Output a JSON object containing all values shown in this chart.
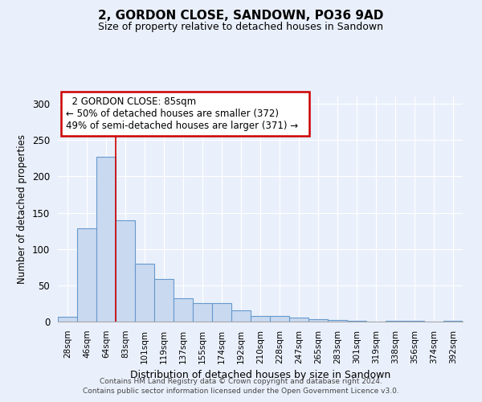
{
  "title": "2, GORDON CLOSE, SANDOWN, PO36 9AD",
  "subtitle": "Size of property relative to detached houses in Sandown",
  "xlabel": "Distribution of detached houses by size in Sandown",
  "ylabel": "Number of detached properties",
  "bar_labels": [
    "28sqm",
    "46sqm",
    "64sqm",
    "83sqm",
    "101sqm",
    "119sqm",
    "137sqm",
    "155sqm",
    "174sqm",
    "192sqm",
    "210sqm",
    "228sqm",
    "247sqm",
    "265sqm",
    "283sqm",
    "301sqm",
    "319sqm",
    "338sqm",
    "356sqm",
    "374sqm",
    "392sqm"
  ],
  "bar_values": [
    7,
    128,
    227,
    139,
    80,
    59,
    32,
    26,
    26,
    15,
    8,
    8,
    5,
    3,
    2,
    1,
    0,
    1,
    1,
    0,
    1
  ],
  "bar_color": "#c9d9f0",
  "bar_edge_color": "#6699cc",
  "background_color": "#eaf0fb",
  "grid_color": "#ffffff",
  "ylim": [
    0,
    310
  ],
  "yticks": [
    0,
    50,
    100,
    150,
    200,
    250,
    300
  ],
  "annotation_title": "2 GORDON CLOSE: 85sqm",
  "annotation_line1": "← 50% of detached houses are smaller (372)",
  "annotation_line2": "49% of semi-detached houses are larger (371) →",
  "annotation_box_color": "#ffffff",
  "annotation_box_edge": "#cc0000",
  "ref_line_color": "#cc0000",
  "ref_bar_index": 3,
  "footnote1": "Contains HM Land Registry data © Crown copyright and database right 2024.",
  "footnote2": "Contains public sector information licensed under the Open Government Licence v3.0."
}
